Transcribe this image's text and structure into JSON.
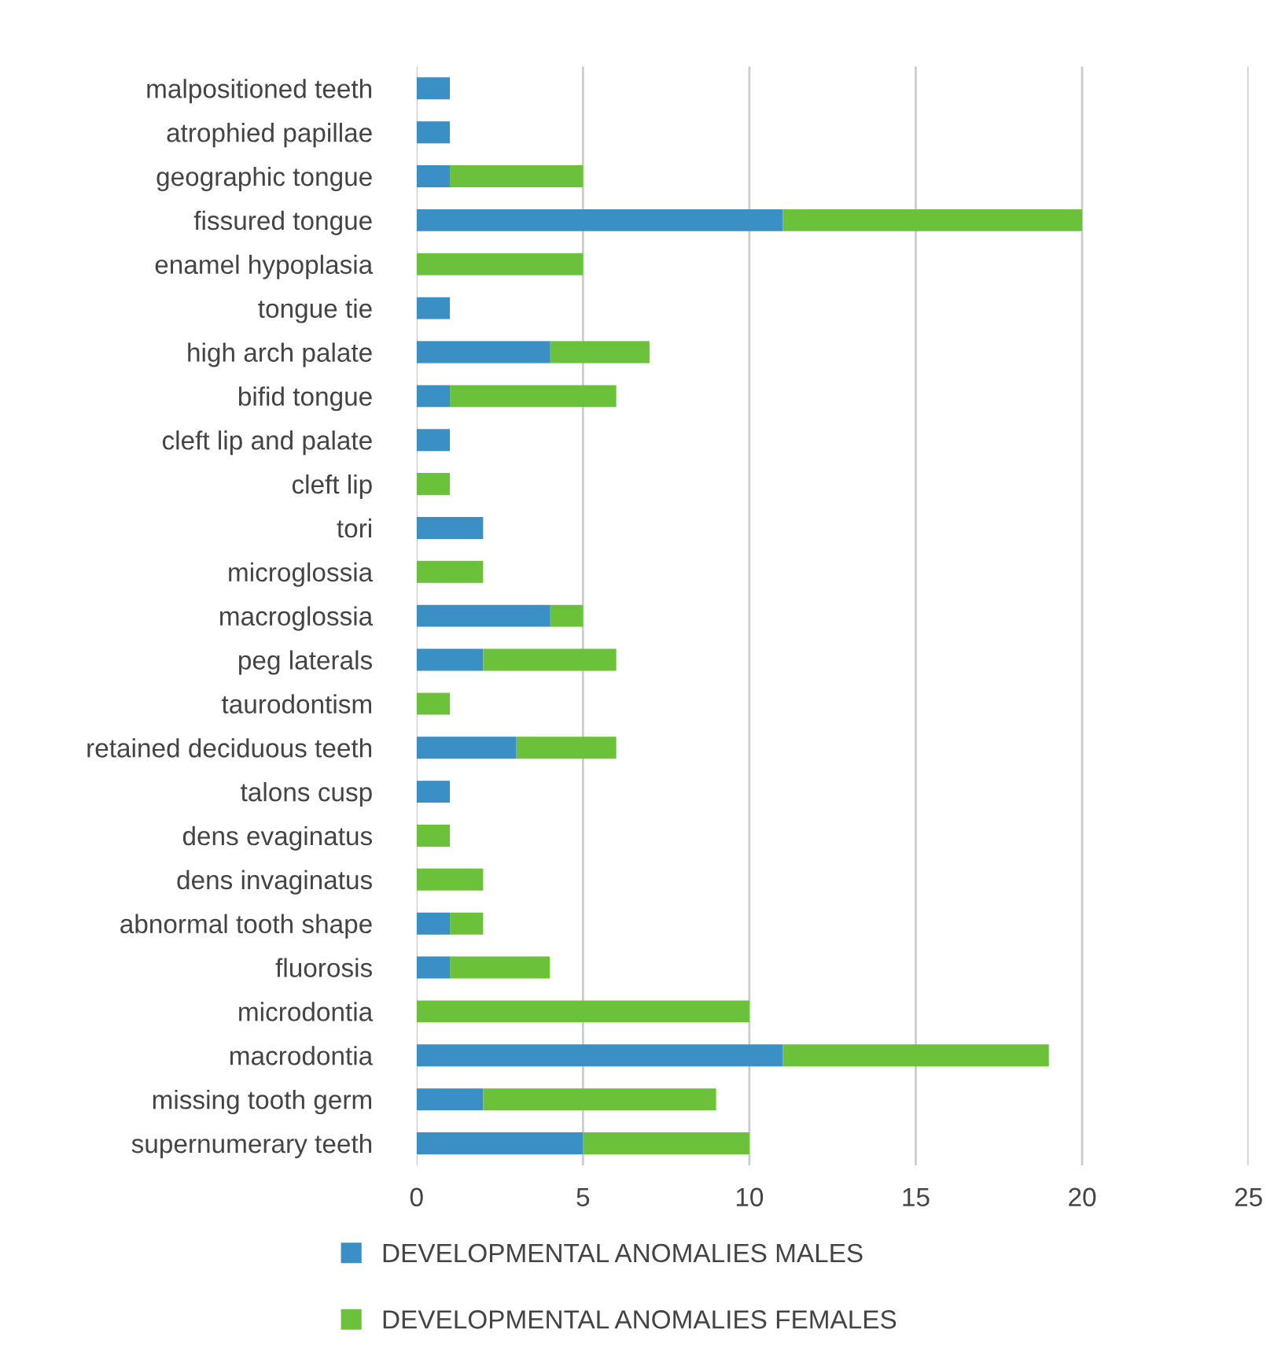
{
  "chart_data": {
    "type": "bar",
    "orientation": "horizontal",
    "stacked": true,
    "categories": [
      "malpositioned teeth",
      "atrophied papillae",
      "geographic tongue",
      "fissured tongue",
      "enamel hypoplasia",
      "tongue tie",
      "high arch palate",
      "bifid tongue",
      "cleft lip and palate",
      "cleft lip",
      "tori",
      "microglossia",
      "macroglossia",
      "peg laterals",
      "taurodontism",
      "retained deciduous teeth",
      "talons cusp",
      "dens evaginatus",
      "dens invaginatus",
      "abnormal tooth shape",
      "fluorosis",
      "microdontia",
      "macrodontia",
      "missing tooth germ",
      "supernumerary teeth"
    ],
    "series": [
      {
        "name": "DEVELOPMENTAL ANOMALIES MALES",
        "color": "#3a8fc4",
        "values": [
          1,
          1,
          1,
          11,
          0,
          1,
          4,
          1,
          1,
          0,
          2,
          0,
          4,
          2,
          0,
          3,
          1,
          0,
          0,
          1,
          1,
          0,
          11,
          2,
          5
        ]
      },
      {
        "name": "DEVELOPMENTAL ANOMALIES FEMALES",
        "color": "#6cc13a",
        "values": [
          0,
          0,
          4,
          9,
          5,
          0,
          3,
          5,
          0,
          1,
          0,
          2,
          1,
          4,
          1,
          3,
          0,
          1,
          2,
          1,
          3,
          10,
          8,
          7,
          5
        ]
      }
    ],
    "xlim": [
      0,
      25
    ],
    "xticks": [
      0,
      5,
      10,
      15,
      20,
      25
    ],
    "grid": "x",
    "legend": "bottom"
  }
}
